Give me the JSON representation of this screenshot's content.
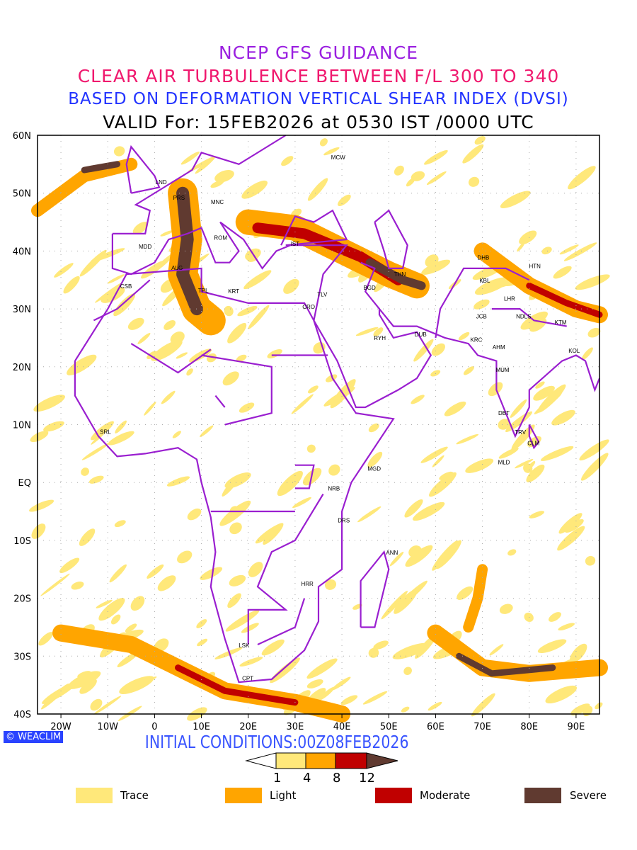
{
  "title": {
    "line1": "NCEP GFS GUIDANCE",
    "line2": "CLEAR AIR TURBULENCE BETWEEN F/L 300 TO 340",
    "line3": "BASED ON DEFORMATION VERTICAL SHEAR INDEX (DVSI)",
    "line4": "VALID For: 15FEB2026 at 0530 IST /0000 UTC"
  },
  "axes": {
    "lat_labels": [
      "60N",
      "50N",
      "40N",
      "30N",
      "20N",
      "10N",
      "EQ",
      "10S",
      "20S",
      "30S",
      "40S"
    ],
    "lon_labels": [
      "20W",
      "10W",
      "0",
      "10E",
      "20E",
      "30E",
      "40E",
      "50E",
      "60E",
      "70E",
      "80E",
      "90E"
    ]
  },
  "stations": [
    {
      "id": "MCW",
      "lon": 39.2,
      "lat": 56.2
    },
    {
      "id": "LND",
      "lon": 1.4,
      "lat": 51.9
    },
    {
      "id": "PRS",
      "lon": 5.2,
      "lat": 49.2
    },
    {
      "id": "MNC",
      "lon": 13.4,
      "lat": 48.5
    },
    {
      "id": "ROM",
      "lon": 14.1,
      "lat": 42.3
    },
    {
      "id": "MDD",
      "lon": -2,
      "lat": 40.8
    },
    {
      "id": "IST",
      "lon": 30,
      "lat": 41.3
    },
    {
      "id": "ALG",
      "lon": 4.8,
      "lat": 37.1
    },
    {
      "id": "CSB",
      "lon": -6.1,
      "lat": 33.9
    },
    {
      "id": "TPL",
      "lon": 10.4,
      "lat": 33.2
    },
    {
      "id": "KRT",
      "lon": 16.9,
      "lat": 33.1
    },
    {
      "id": "TLV",
      "lon": 35.8,
      "lat": 32.5
    },
    {
      "id": "CRO",
      "lon": 32.9,
      "lat": 30.4
    },
    {
      "id": "BGD",
      "lon": 45.9,
      "lat": 33.7
    },
    {
      "id": "THN",
      "lon": 52.4,
      "lat": 36
    },
    {
      "id": "DHB",
      "lon": 70.2,
      "lat": 38.9
    },
    {
      "id": "HTN",
      "lon": 81.2,
      "lat": 37.4
    },
    {
      "id": "KBL",
      "lon": 70.5,
      "lat": 34.9
    },
    {
      "id": "LHR",
      "lon": 75.8,
      "lat": 31.8
    },
    {
      "id": "JCB",
      "lon": 69.8,
      "lat": 28.7
    },
    {
      "id": "NDLS",
      "lon": 78.8,
      "lat": 28.7
    },
    {
      "id": "KTM",
      "lon": 86.7,
      "lat": 27.7
    },
    {
      "id": "RYH",
      "lon": 48.1,
      "lat": 25
    },
    {
      "id": "DUB",
      "lon": 56.8,
      "lat": 25.6
    },
    {
      "id": "KRC",
      "lon": 68.7,
      "lat": 24.7
    },
    {
      "id": "AHM",
      "lon": 73.5,
      "lat": 23.4
    },
    {
      "id": "KOL",
      "lon": 89.6,
      "lat": 22.8
    },
    {
      "id": "MUM",
      "lon": 74.3,
      "lat": 19.5
    },
    {
      "id": "DBT",
      "lon": 74.6,
      "lat": 12
    },
    {
      "id": "TRV",
      "lon": 78.1,
      "lat": 8.7
    },
    {
      "id": "CLM",
      "lon": 80.9,
      "lat": 6.8
    },
    {
      "id": "MLD",
      "lon": 74.6,
      "lat": 3.5
    },
    {
      "id": "SRL",
      "lon": -10.5,
      "lat": 8.8
    },
    {
      "id": "MGD",
      "lon": 46.9,
      "lat": 2.4
    },
    {
      "id": "NRB",
      "lon": 38.3,
      "lat": -1
    },
    {
      "id": "DRS",
      "lon": 40.4,
      "lat": -6.5
    },
    {
      "id": "ANN",
      "lon": 50.7,
      "lat": -12.1
    },
    {
      "id": "HRR",
      "lon": 32.6,
      "lat": -17.5
    },
    {
      "id": "LSK",
      "lon": 19.1,
      "lat": -28.1
    },
    {
      "id": "CPT",
      "lon": 19.9,
      "lat": -33.8
    }
  ],
  "credit": "WEACLIM",
  "initial_conditions": "INITIAL CONDITIONS:00Z08FEB2026",
  "colorbar": {
    "levels": [
      "1",
      "4",
      "8",
      "12"
    ],
    "colors": [
      "#ffe87a",
      "#ffa500",
      "#c00000",
      "#603a30"
    ]
  },
  "legend": [
    {
      "label": "Trace",
      "color": "#ffe87a"
    },
    {
      "label": "Light",
      "color": "#ffa500"
    },
    {
      "label": "Moderate",
      "color": "#c00000"
    },
    {
      "label": "Severe",
      "color": "#603a30"
    }
  ],
  "colors": {
    "coastline": "#9a1fd0"
  }
}
